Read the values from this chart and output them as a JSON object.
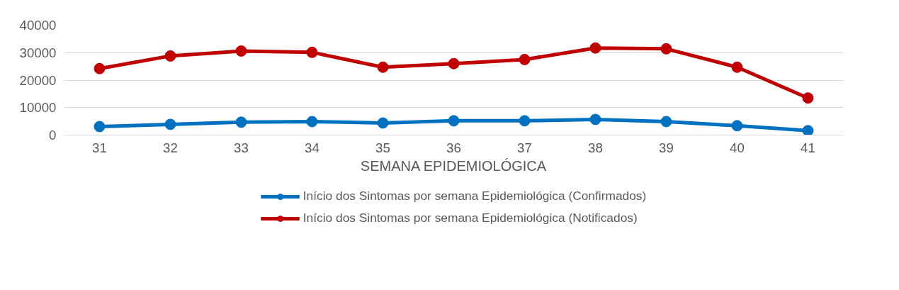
{
  "chart_data": {
    "type": "line",
    "xlabel": "SEMANA EPIDEMIOLÓGICA",
    "categories": [
      "31",
      "32",
      "33",
      "34",
      "35",
      "36",
      "37",
      "38",
      "39",
      "40",
      "41"
    ],
    "series": [
      {
        "name": "Início dos Sintomas por semana Epidemiológica (Confirmados)",
        "color": "#0070c0",
        "values": [
          3100,
          3900,
          4700,
          4900,
          4400,
          5200,
          5200,
          5700,
          4900,
          3400,
          1600
        ]
      },
      {
        "name": "Início dos Sintomas por semana Epidemiológica (Notificados)",
        "color": "#c00000",
        "values": [
          24200,
          28800,
          30600,
          30100,
          24700,
          26000,
          27500,
          31700,
          31400,
          24700,
          13500
        ]
      }
    ],
    "ylim": [
      0,
      40000
    ],
    "yticks": [
      0,
      10000,
      20000,
      30000,
      40000
    ],
    "grid": "y",
    "legend": "bottom",
    "marker": "circle",
    "line_style": "solid"
  }
}
